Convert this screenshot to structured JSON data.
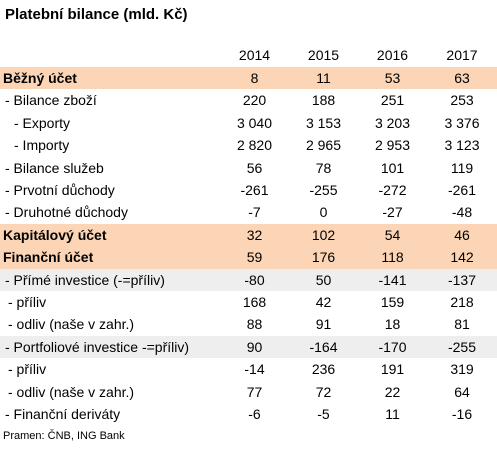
{
  "title": "Platební bilance (mld. Kč)",
  "years": [
    "2014",
    "2015",
    "2016",
    "2017"
  ],
  "rows": [
    {
      "label": "Běžný účet",
      "values": [
        "8",
        "11",
        "53",
        "63"
      ],
      "style": "hl"
    },
    {
      "label": "- Bilance zboží",
      "values": [
        "220",
        "188",
        "251",
        "253"
      ],
      "style": ""
    },
    {
      "label": "  - Exporty",
      "values": [
        "3 040",
        "3 153",
        "3 203",
        "3 376"
      ],
      "style": ""
    },
    {
      "label": "  - Importy",
      "values": [
        "2 820",
        "2 965",
        "2 953",
        "3 123"
      ],
      "style": ""
    },
    {
      "label": "- Bilance služeb",
      "values": [
        "56",
        "78",
        "101",
        "119"
      ],
      "style": ""
    },
    {
      "label": "- Prvotní důchody",
      "values": [
        "-261",
        "-255",
        "-272",
        "-261"
      ],
      "style": ""
    },
    {
      "label": "- Druhotné důchody",
      "values": [
        "-7",
        "0",
        "-27",
        "-48"
      ],
      "style": ""
    },
    {
      "label": "Kapitálový účet",
      "values": [
        "32",
        "102",
        "54",
        "46"
      ],
      "style": "hl"
    },
    {
      "label": "Finanční účet",
      "values": [
        "59",
        "176",
        "118",
        "142"
      ],
      "style": "hl"
    },
    {
      "label": "- Přímé investice (-=příliv)",
      "values": [
        "-80",
        "50",
        "-141",
        "-137"
      ],
      "style": "sub"
    },
    {
      "label": " - příliv",
      "values": [
        "168",
        "42",
        "159",
        "218"
      ],
      "style": ""
    },
    {
      "label": " - odliv (naše v zahr.)",
      "values": [
        "88",
        "91",
        "18",
        "81"
      ],
      "style": ""
    },
    {
      "label": "- Portfoliové investice -=příliv)",
      "values": [
        "90",
        "-164",
        "-170",
        "-255"
      ],
      "style": "sub"
    },
    {
      "label": " - příliv",
      "values": [
        "-14",
        "236",
        "191",
        "319"
      ],
      "style": ""
    },
    {
      "label": " - odliv (naše v zahr.)",
      "values": [
        "77",
        "72",
        "22",
        "64"
      ],
      "style": ""
    },
    {
      "label": "- Finanční deriváty",
      "values": [
        "-6",
        "-5",
        "11",
        "-16"
      ],
      "style": ""
    }
  ],
  "source": "Pramen: ČNB, ING Bank"
}
